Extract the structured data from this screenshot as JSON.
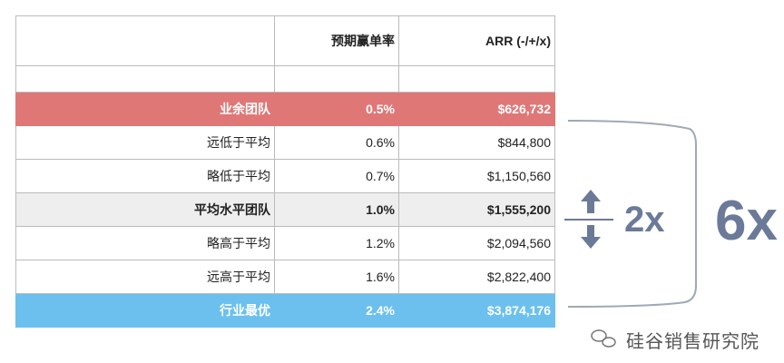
{
  "table": {
    "headers": [
      "",
      "预期赢单率",
      "ARR (-/+/x)"
    ],
    "rows": [
      {
        "label": "业余团队",
        "rate": "0.5%",
        "arr": "$626,732",
        "style": "red"
      },
      {
        "label": "远低于平均",
        "rate": "0.6%",
        "arr": "$844,800",
        "style": "normal"
      },
      {
        "label": "略低于平均",
        "rate": "0.7%",
        "arr": "$1,150,560",
        "style": "normal"
      },
      {
        "label": "平均水平团队",
        "rate": "1.0%",
        "arr": "$1,555,200",
        "style": "gray"
      },
      {
        "label": "略高于平均",
        "rate": "1.2%",
        "arr": "$2,094,560",
        "style": "normal"
      },
      {
        "label": "远高于平均",
        "rate": "1.6%",
        "arr": "$2,822,400",
        "style": "normal"
      },
      {
        "label": "行业最优",
        "rate": "2.4%",
        "arr": "$3,874,176",
        "style": "blue"
      }
    ]
  },
  "annotations": {
    "inner": "2x",
    "outer": "6x"
  },
  "watermark": "硅谷销售研究院",
  "colors": {
    "red": "#e07777",
    "blue": "#6cc0ee",
    "gray": "#eeeeee",
    "accent": "#6b7a99"
  }
}
